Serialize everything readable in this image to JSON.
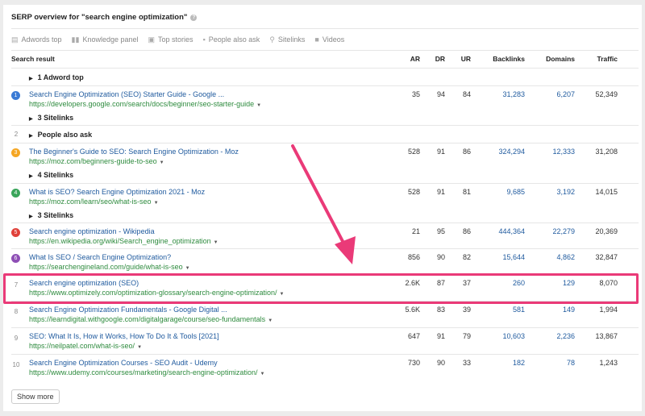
{
  "title": "SERP overview for \"search engine optimization\"",
  "filters": [
    {
      "icon": "adwords-icon",
      "label": "Adwords top"
    },
    {
      "icon": "knowledge-panel-icon",
      "label": "Knowledge panel"
    },
    {
      "icon": "top-stories-icon",
      "label": "Top stories"
    },
    {
      "icon": "people-also-ask-icon",
      "label": "People also ask"
    },
    {
      "icon": "link-icon",
      "label": "Sitelinks"
    },
    {
      "icon": "video-icon",
      "label": "Videos"
    }
  ],
  "headers": {
    "result": "Search result",
    "ar": "AR",
    "dr": "DR",
    "ur": "UR",
    "backlinks": "Backlinks",
    "domains": "Domains",
    "traffic": "Traffic"
  },
  "adword": "1 Adword top",
  "paa": {
    "num": "2",
    "label": "People also ask"
  },
  "results": [
    {
      "pos": "1",
      "color": "#3a7bd5",
      "title": "Search Engine Optimization (SEO) Starter Guide - Google ...",
      "url": "https://developers.google.com/search/docs/beginner/seo-starter-guide",
      "ar": "35",
      "dr": "94",
      "ur": "84",
      "backlinks": "31,283",
      "domains": "6,207",
      "traffic": "52,349",
      "sitelinks": "3 Sitelinks"
    },
    {
      "pos": "3",
      "color": "#f5a623",
      "title": "The Beginner's Guide to SEO: Search Engine Optimization - Moz",
      "url": "https://moz.com/beginners-guide-to-seo",
      "ar": "528",
      "dr": "91",
      "ur": "86",
      "backlinks": "324,294",
      "domains": "12,333",
      "traffic": "31,208",
      "sitelinks": "4 Sitelinks"
    },
    {
      "pos": "4",
      "color": "#3aa55a",
      "title": "What is SEO? Search Engine Optimization 2021 - Moz",
      "url": "https://moz.com/learn/seo/what-is-seo",
      "ar": "528",
      "dr": "91",
      "ur": "81",
      "backlinks": "9,685",
      "domains": "3,192",
      "traffic": "14,015",
      "sitelinks": "3 Sitelinks"
    },
    {
      "pos": "5",
      "color": "#e0413a",
      "title": "Search engine optimization - Wikipedia",
      "url": "https://en.wikipedia.org/wiki/Search_engine_optimization",
      "ar": "21",
      "dr": "95",
      "ur": "86",
      "backlinks": "444,364",
      "domains": "22,279",
      "traffic": "20,369"
    },
    {
      "pos": "6",
      "color": "#8e4fb5",
      "title": "What Is SEO / Search Engine Optimization?",
      "url": "https://searchengineland.com/guide/what-is-seo",
      "ar": "856",
      "dr": "90",
      "ur": "82",
      "backlinks": "15,644",
      "domains": "4,862",
      "traffic": "32,847"
    },
    {
      "pos": "7",
      "title": "Search engine optimization (SEO)",
      "url": "https://www.optimizely.com/optimization-glossary/search-engine-optimization/",
      "ar": "2.6K",
      "dr": "87",
      "ur": "37",
      "backlinks": "260",
      "domains": "129",
      "traffic": "8,070"
    },
    {
      "pos": "8",
      "title": "Search Engine Optimization Fundamentals - Google Digital ...",
      "url": "https://learndigital.withgoogle.com/digitalgarage/course/seo-fundamentals",
      "ar": "5.6K",
      "dr": "83",
      "ur": "39",
      "backlinks": "581",
      "domains": "149",
      "traffic": "1,994"
    },
    {
      "pos": "9",
      "title": "SEO: What It Is, How it Works, How To Do It & Tools [2021]",
      "url": "https://neilpatel.com/what-is-seo/",
      "ar": "647",
      "dr": "91",
      "ur": "79",
      "backlinks": "10,603",
      "domains": "2,236",
      "traffic": "13,867"
    },
    {
      "pos": "10",
      "title": "Search Engine Optimization Courses - SEO Audit - Udemy",
      "url": "https://www.udemy.com/courses/marketing/search-engine-optimization/",
      "ar": "730",
      "dr": "90",
      "ur": "33",
      "backlinks": "182",
      "domains": "78",
      "traffic": "1,243"
    }
  ],
  "show_more": "Show more",
  "highlight_color": "#ea3a78"
}
